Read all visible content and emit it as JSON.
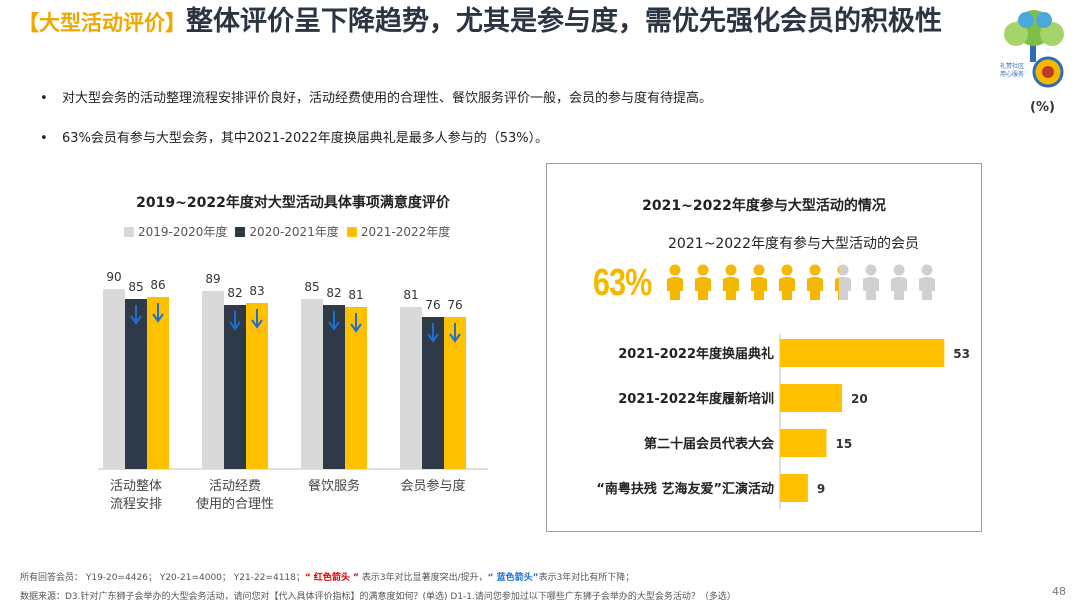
{
  "header": {
    "tag": "【大型活动评价】",
    "title": "整体评价呈下降趋势，尤其是参与度，需优先强化会员的积极性",
    "unit": "(%)"
  },
  "bullets": [
    "对大型会务的活动整理流程安排评价良好，活动经费使用的合理性、餐饮服务评价一般，会员的参与度有待提高。",
    "63%会员有参与大型会务，其中2021-2022年度换届典礼是最多人参与的（53%）。"
  ],
  "colors": {
    "gray": "#d9d9d9",
    "navy": "#2f3a48",
    "yellow": "#ffc000",
    "blue_arrow": "#1e6fd0",
    "person_yellow": "#f5b800",
    "person_gray": "#d0d0d0"
  },
  "chart_data": [
    {
      "type": "bar",
      "title": "2019~2022年度对大型活动具体事项满意度评价",
      "categories": [
        "活动整体\n流程安排",
        "活动经费\n使用的合理性",
        "餐饮服务",
        "会员参与度"
      ],
      "series": [
        {
          "name": "2019-2020年度",
          "values": [
            90,
            89,
            85,
            81
          ]
        },
        {
          "name": "2020-2021年度",
          "values": [
            85,
            82,
            82,
            76
          ]
        },
        {
          "name": "2021-2022年度",
          "values": [
            86,
            83,
            81,
            76
          ]
        }
      ],
      "down_arrows": [
        [
          false,
          true,
          true
        ],
        [
          false,
          true,
          true
        ],
        [
          false,
          true,
          true
        ],
        [
          false,
          true,
          true
        ]
      ],
      "ylim": [
        0,
        100
      ]
    },
    {
      "type": "bar",
      "orientation": "horizontal",
      "title": "2021~2022年度参与大型活动的情况",
      "subtitle": "2021~2022年度有参与大型活动的会员",
      "participation_pct": "63%",
      "participation_value": 63,
      "categories": [
        "2021-2022年度换届典礼",
        "2021-2022年度履新培训",
        "第二十届会员代表大会",
        "“南粤扶残 艺海友爱”汇演活动"
      ],
      "values": [
        53,
        20,
        15,
        9
      ],
      "xlim": [
        0,
        60
      ]
    }
  ],
  "footer": {
    "line1_prefix": "所有回答会员： Y19-20=4426； Y20-21=4000； Y21-22=4118；",
    "red_label": "“ 红色箭头 ”",
    "mid": " 表示3年对比显著度突出/提升，",
    "blue_label": "“ 蓝色箭头”",
    "suffix": "表示3年对比有所下降；",
    "line2": "数据来源：D3.针对广东狮子会举办的大型会务活动，请问您对【代入具体评价指标】的满意度如何？(单选) D1-1.请问您参加过以下哪些广东狮子会举办的大型会务活动？（多选）"
  },
  "page_number": "48"
}
